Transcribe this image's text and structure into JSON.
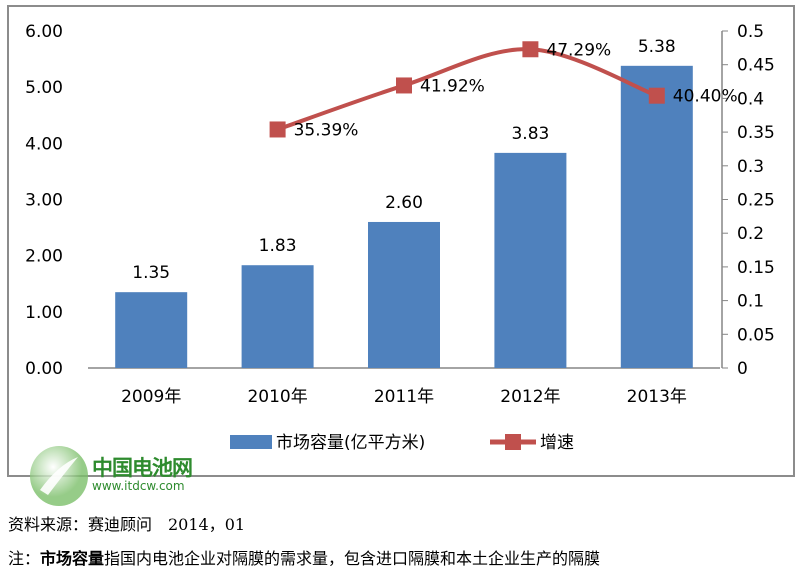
{
  "chart_data": {
    "type": "bar+line",
    "categories": [
      "2009年",
      "2010年",
      "2011年",
      "2012年",
      "2013年"
    ],
    "series": [
      {
        "name": "市场容量(亿平方米)",
        "type": "bar",
        "axis": "left",
        "values": [
          1.35,
          1.83,
          2.6,
          3.83,
          5.38
        ],
        "labels": [
          "1.35",
          "1.83",
          "2.60",
          "3.83",
          "5.38"
        ],
        "color": "#4f81bd"
      },
      {
        "name": "增速",
        "type": "line",
        "axis": "right",
        "values": [
          null,
          0.3539,
          0.4192,
          0.4729,
          0.404
        ],
        "labels": [
          "",
          "35.39%",
          "41.92%",
          "47.29%",
          "40.40%"
        ],
        "color": "#c0504d",
        "smooth": true
      }
    ],
    "y_left": {
      "range": [
        0,
        6
      ],
      "ticks": [
        "0.00",
        "1.00",
        "2.00",
        "3.00",
        "4.00",
        "5.00",
        "6.00"
      ]
    },
    "y_right": {
      "range": [
        0,
        0.5
      ],
      "ticks": [
        "0",
        "0.05",
        "0.1",
        "0.15",
        "0.2",
        "0.25",
        "0.3",
        "0.35",
        "0.4",
        "0.45",
        "0.5"
      ]
    },
    "grid": false,
    "legend": "bottom"
  },
  "watermark": {
    "name": "中国电池网",
    "url": "www.itdcw.com"
  },
  "source": "资料来源：赛迪顾问　2014，01",
  "note": {
    "prefix": "注：",
    "bold": "市场容量",
    "rest": "指国内电池企业对隔膜的需求量，包含进口隔膜和本土企业生产的隔膜"
  }
}
